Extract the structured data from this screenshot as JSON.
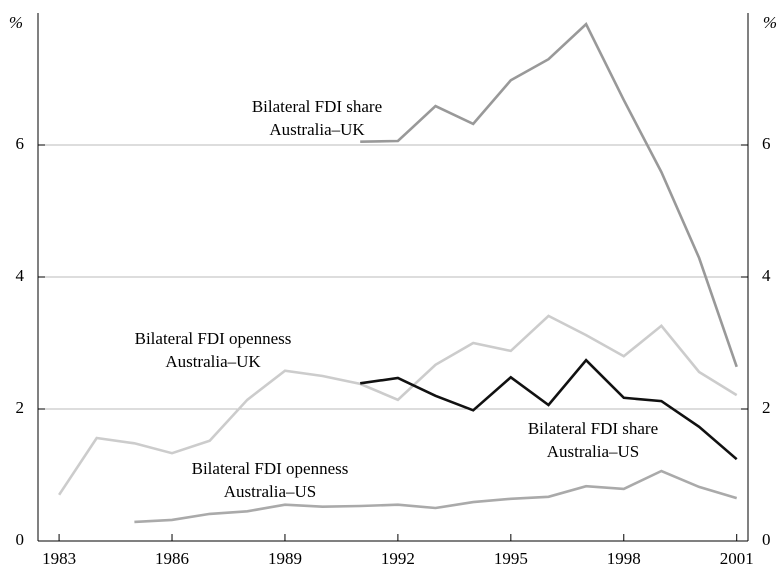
{
  "chart_data": {
    "type": "line",
    "y_label": "%",
    "y2_label": "%",
    "x": [
      1983,
      1984,
      1985,
      1986,
      1987,
      1988,
      1989,
      1990,
      1991,
      1992,
      1993,
      1994,
      1995,
      1996,
      1997,
      1998,
      1999,
      2000,
      2001
    ],
    "xlim": [
      1982.44,
      2001.3
    ],
    "xticks": [
      1983,
      1986,
      1989,
      1992,
      1995,
      1998,
      2001
    ],
    "ylim": [
      0,
      8
    ],
    "yticks": [
      0,
      2,
      4,
      6
    ],
    "y2lim": [
      0,
      8
    ],
    "y2ticks": [
      0,
      2,
      4,
      6
    ],
    "grid": true,
    "series": [
      {
        "name": [
          "Bilateral FDI share",
          "Australia–UK"
        ],
        "color": "#999999",
        "values": [
          null,
          null,
          null,
          null,
          null,
          null,
          null,
          null,
          6.05,
          6.06,
          6.59,
          6.32,
          6.98,
          7.3,
          7.83,
          6.68,
          5.59,
          4.29,
          2.64
        ]
      },
      {
        "name": [
          "Bilateral FDI openness",
          "Australia–UK"
        ],
        "color": "#cccccc",
        "values": [
          0.7,
          1.56,
          1.48,
          1.33,
          1.52,
          2.14,
          2.58,
          2.5,
          2.38,
          2.14,
          2.67,
          3.0,
          2.88,
          3.41,
          3.12,
          2.8,
          3.26,
          2.56,
          2.21
        ]
      },
      {
        "name": [
          "Bilateral FDI share",
          "Australia–US"
        ],
        "color": "#111111",
        "values": [
          null,
          null,
          null,
          null,
          null,
          null,
          null,
          null,
          2.39,
          2.47,
          2.2,
          1.98,
          2.48,
          2.06,
          2.74,
          2.17,
          2.12,
          1.73,
          1.24
        ]
      },
      {
        "name": [
          "Bilateral FDI openness",
          "Australia–US"
        ],
        "color": "#aaaaaa",
        "values": [
          null,
          null,
          0.29,
          0.32,
          0.41,
          0.45,
          0.55,
          0.52,
          0.53,
          0.55,
          0.5,
          0.59,
          0.64,
          0.67,
          0.83,
          0.79,
          1.06,
          0.82,
          0.65
        ]
      }
    ]
  }
}
